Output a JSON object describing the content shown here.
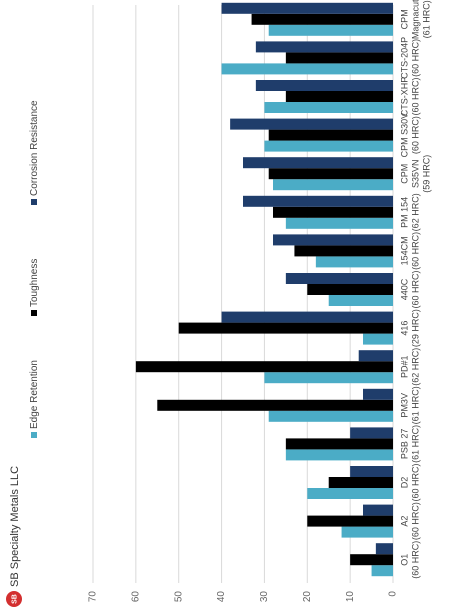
{
  "logo_mark": "SB",
  "logo_text": "SB Specialty Metals LLC",
  "chart_data": {
    "type": "bar",
    "categories": [
      [
        "O1",
        "(60 HRC)"
      ],
      [
        "A2",
        "(60 HRC)"
      ],
      [
        "D2",
        "(60 HRC)"
      ],
      [
        "PSB 27",
        "(61 HRC)"
      ],
      [
        "PM3V",
        "(61 HRC)"
      ],
      [
        "PD#1",
        "(62 HRC)"
      ],
      [
        "416",
        "(29 HRC)"
      ],
      [
        "440C",
        "(60 HRC)"
      ],
      [
        "154CM",
        "(60 HRC)"
      ],
      [
        "PM 154",
        "(62 HRC)"
      ],
      [
        "CPM",
        "S35VN",
        "(59 HRC)"
      ],
      [
        "CPM S30V",
        "(60 HRC)"
      ],
      [
        "CTS-XHP",
        "(60 HRC)"
      ],
      [
        "CTS-204P",
        "(60 HRC)"
      ],
      [
        "CPM",
        "Magnacut",
        "(61 HRC)"
      ]
    ],
    "series": [
      {
        "name": "Edge Retention",
        "color": "#4bacc6",
        "values": [
          5,
          12,
          20,
          25,
          29,
          30,
          7,
          15,
          18,
          25,
          28,
          30,
          30,
          40,
          29
        ]
      },
      {
        "name": "Toughness",
        "color": "#000000",
        "values": [
          10,
          20,
          15,
          25,
          55,
          60,
          50,
          20,
          23,
          28,
          29,
          29,
          25,
          25,
          33
        ]
      },
      {
        "name": "Corrosion Resistance",
        "color": "#1f3d6b",
        "values": [
          4,
          7,
          10,
          10,
          7,
          8,
          40,
          25,
          28,
          35,
          35,
          38,
          32,
          32,
          40
        ]
      }
    ],
    "ylim": [
      0,
      70
    ],
    "yticks": [
      0,
      10,
      20,
      30,
      40,
      50,
      60,
      70
    ],
    "grid": true,
    "legend": "top"
  }
}
